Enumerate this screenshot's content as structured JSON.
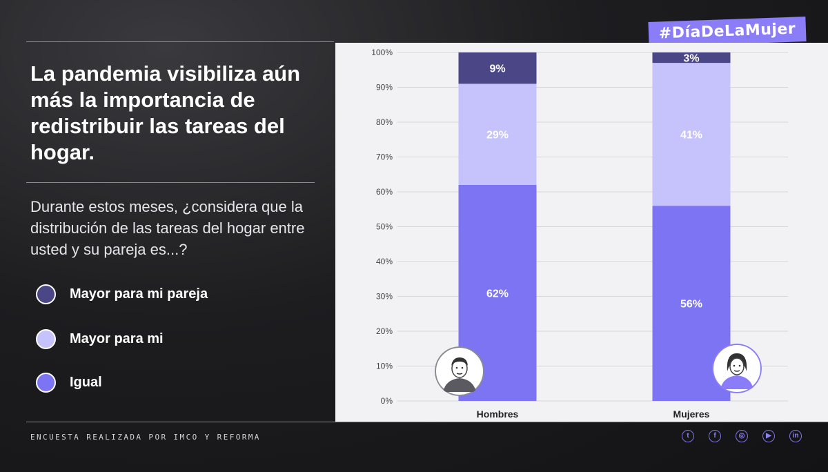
{
  "hashtag": "#DíaDeLaMujer",
  "title": "La pandemia visibiliza aún más la importancia de redistribuir las tareas del hogar.",
  "question": "Durante estos meses, ¿considera que la distribución de las tareas del hogar entre usted y su pareja es...?",
  "legend": [
    {
      "label": "Mayor para mi pareja",
      "color": "#4b4685"
    },
    {
      "label": "Mayor para mi",
      "color": "#c6c2fb"
    },
    {
      "label": "Igual",
      "color": "#7c74f3"
    }
  ],
  "footer": "ENCUESTA REALIZADA POR IMCO Y REFORMA",
  "social_icons": [
    "twitter-icon",
    "facebook-icon",
    "instagram-icon",
    "youtube-icon",
    "linkedin-icon"
  ],
  "chart_data": {
    "type": "bar",
    "stacked": true,
    "categories": [
      "Hombres",
      "Mujeres"
    ],
    "series": [
      {
        "name": "Igual",
        "values": [
          62,
          56
        ],
        "labels": [
          "62%",
          "56%"
        ],
        "color": "#7c74f3"
      },
      {
        "name": "Mayor para mi",
        "values": [
          29,
          41
        ],
        "labels": [
          "29%",
          "41%"
        ],
        "color": "#c6c2fb"
      },
      {
        "name": "Mayor para mi pareja",
        "values": [
          9,
          3
        ],
        "labels": [
          "9%",
          "3%"
        ],
        "color": "#4b4685"
      }
    ],
    "yticks": [
      "0%",
      "10%",
      "20%",
      "30%",
      "40%",
      "50%",
      "60%",
      "70%",
      "80%",
      "90%",
      "100%"
    ],
    "ylim": [
      0,
      100
    ],
    "grid": true,
    "legend_position": "left"
  }
}
